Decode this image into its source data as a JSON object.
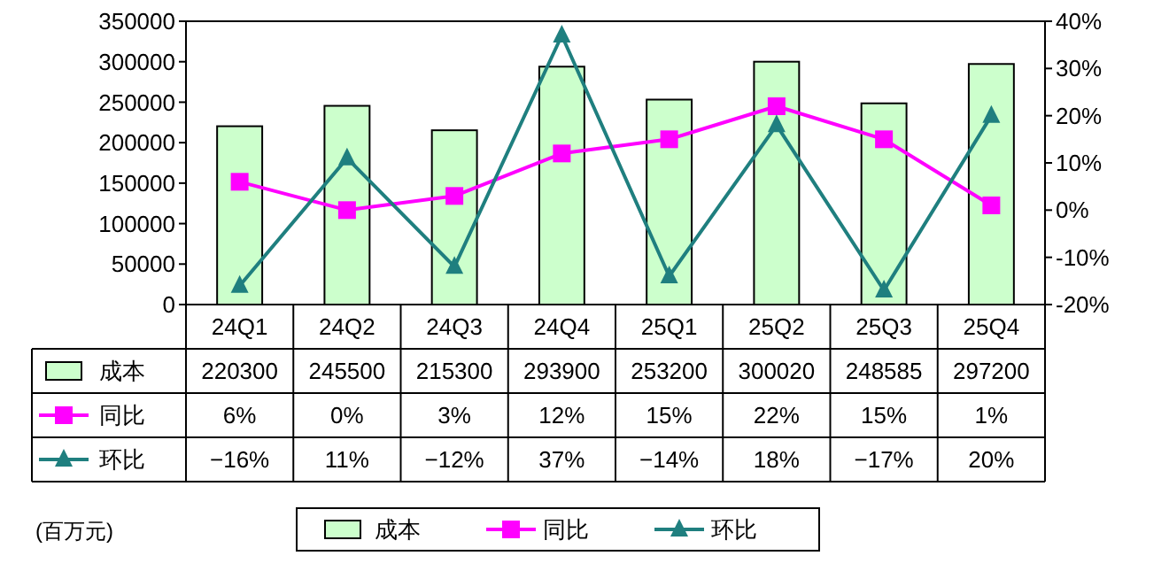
{
  "chart_data": {
    "type": "bar",
    "categories": [
      "24Q1",
      "24Q2",
      "24Q3",
      "24Q4",
      "25Q1",
      "25Q2",
      "25Q3",
      "25Q4"
    ],
    "series": [
      {
        "name": "成本",
        "color": "#ccffcc",
        "values": [
          220300,
          245500,
          215300,
          293900,
          253200,
          300020,
          248585,
          297200
        ],
        "value_labels": [
          "220300",
          "245500",
          "215300",
          "293900",
          "253200",
          "300020",
          "248585",
          "297200"
        ]
      },
      {
        "name": "同比",
        "type": "line",
        "axis": "y2",
        "color": "#ff00ff",
        "marker": "square",
        "values": [
          6,
          0,
          3,
          12,
          15,
          22,
          15,
          1
        ],
        "value_labels": [
          "6%",
          "0%",
          "3%",
          "12%",
          "15%",
          "22%",
          "15%",
          "1%"
        ]
      },
      {
        "name": "环比",
        "type": "line",
        "axis": "y2",
        "color": "#1f7f7f",
        "marker": "triangle",
        "values": [
          -16,
          11,
          -12,
          37,
          -14,
          18,
          -17,
          20
        ],
        "value_labels": [
          "−16%",
          "11%",
          "−12%",
          "37%",
          "−14%",
          "18%",
          "−17%",
          "20%"
        ]
      }
    ],
    "ylim": [
      0,
      350000
    ],
    "yticks": [
      0,
      50000,
      100000,
      150000,
      200000,
      250000,
      300000,
      350000
    ],
    "y2lim": [
      -20,
      40
    ],
    "y2ticks": [
      {
        "value": -20,
        "label": "-20%"
      },
      {
        "value": -10,
        "label": "-10%"
      },
      {
        "value": 0,
        "label": "0%"
      },
      {
        "value": 10,
        "label": "10%"
      },
      {
        "value": 20,
        "label": "20%"
      },
      {
        "value": 30,
        "label": "30%"
      },
      {
        "value": 40,
        "label": "40%"
      }
    ],
    "legend": "bottom",
    "annotations": [
      "(百万元)"
    ]
  }
}
